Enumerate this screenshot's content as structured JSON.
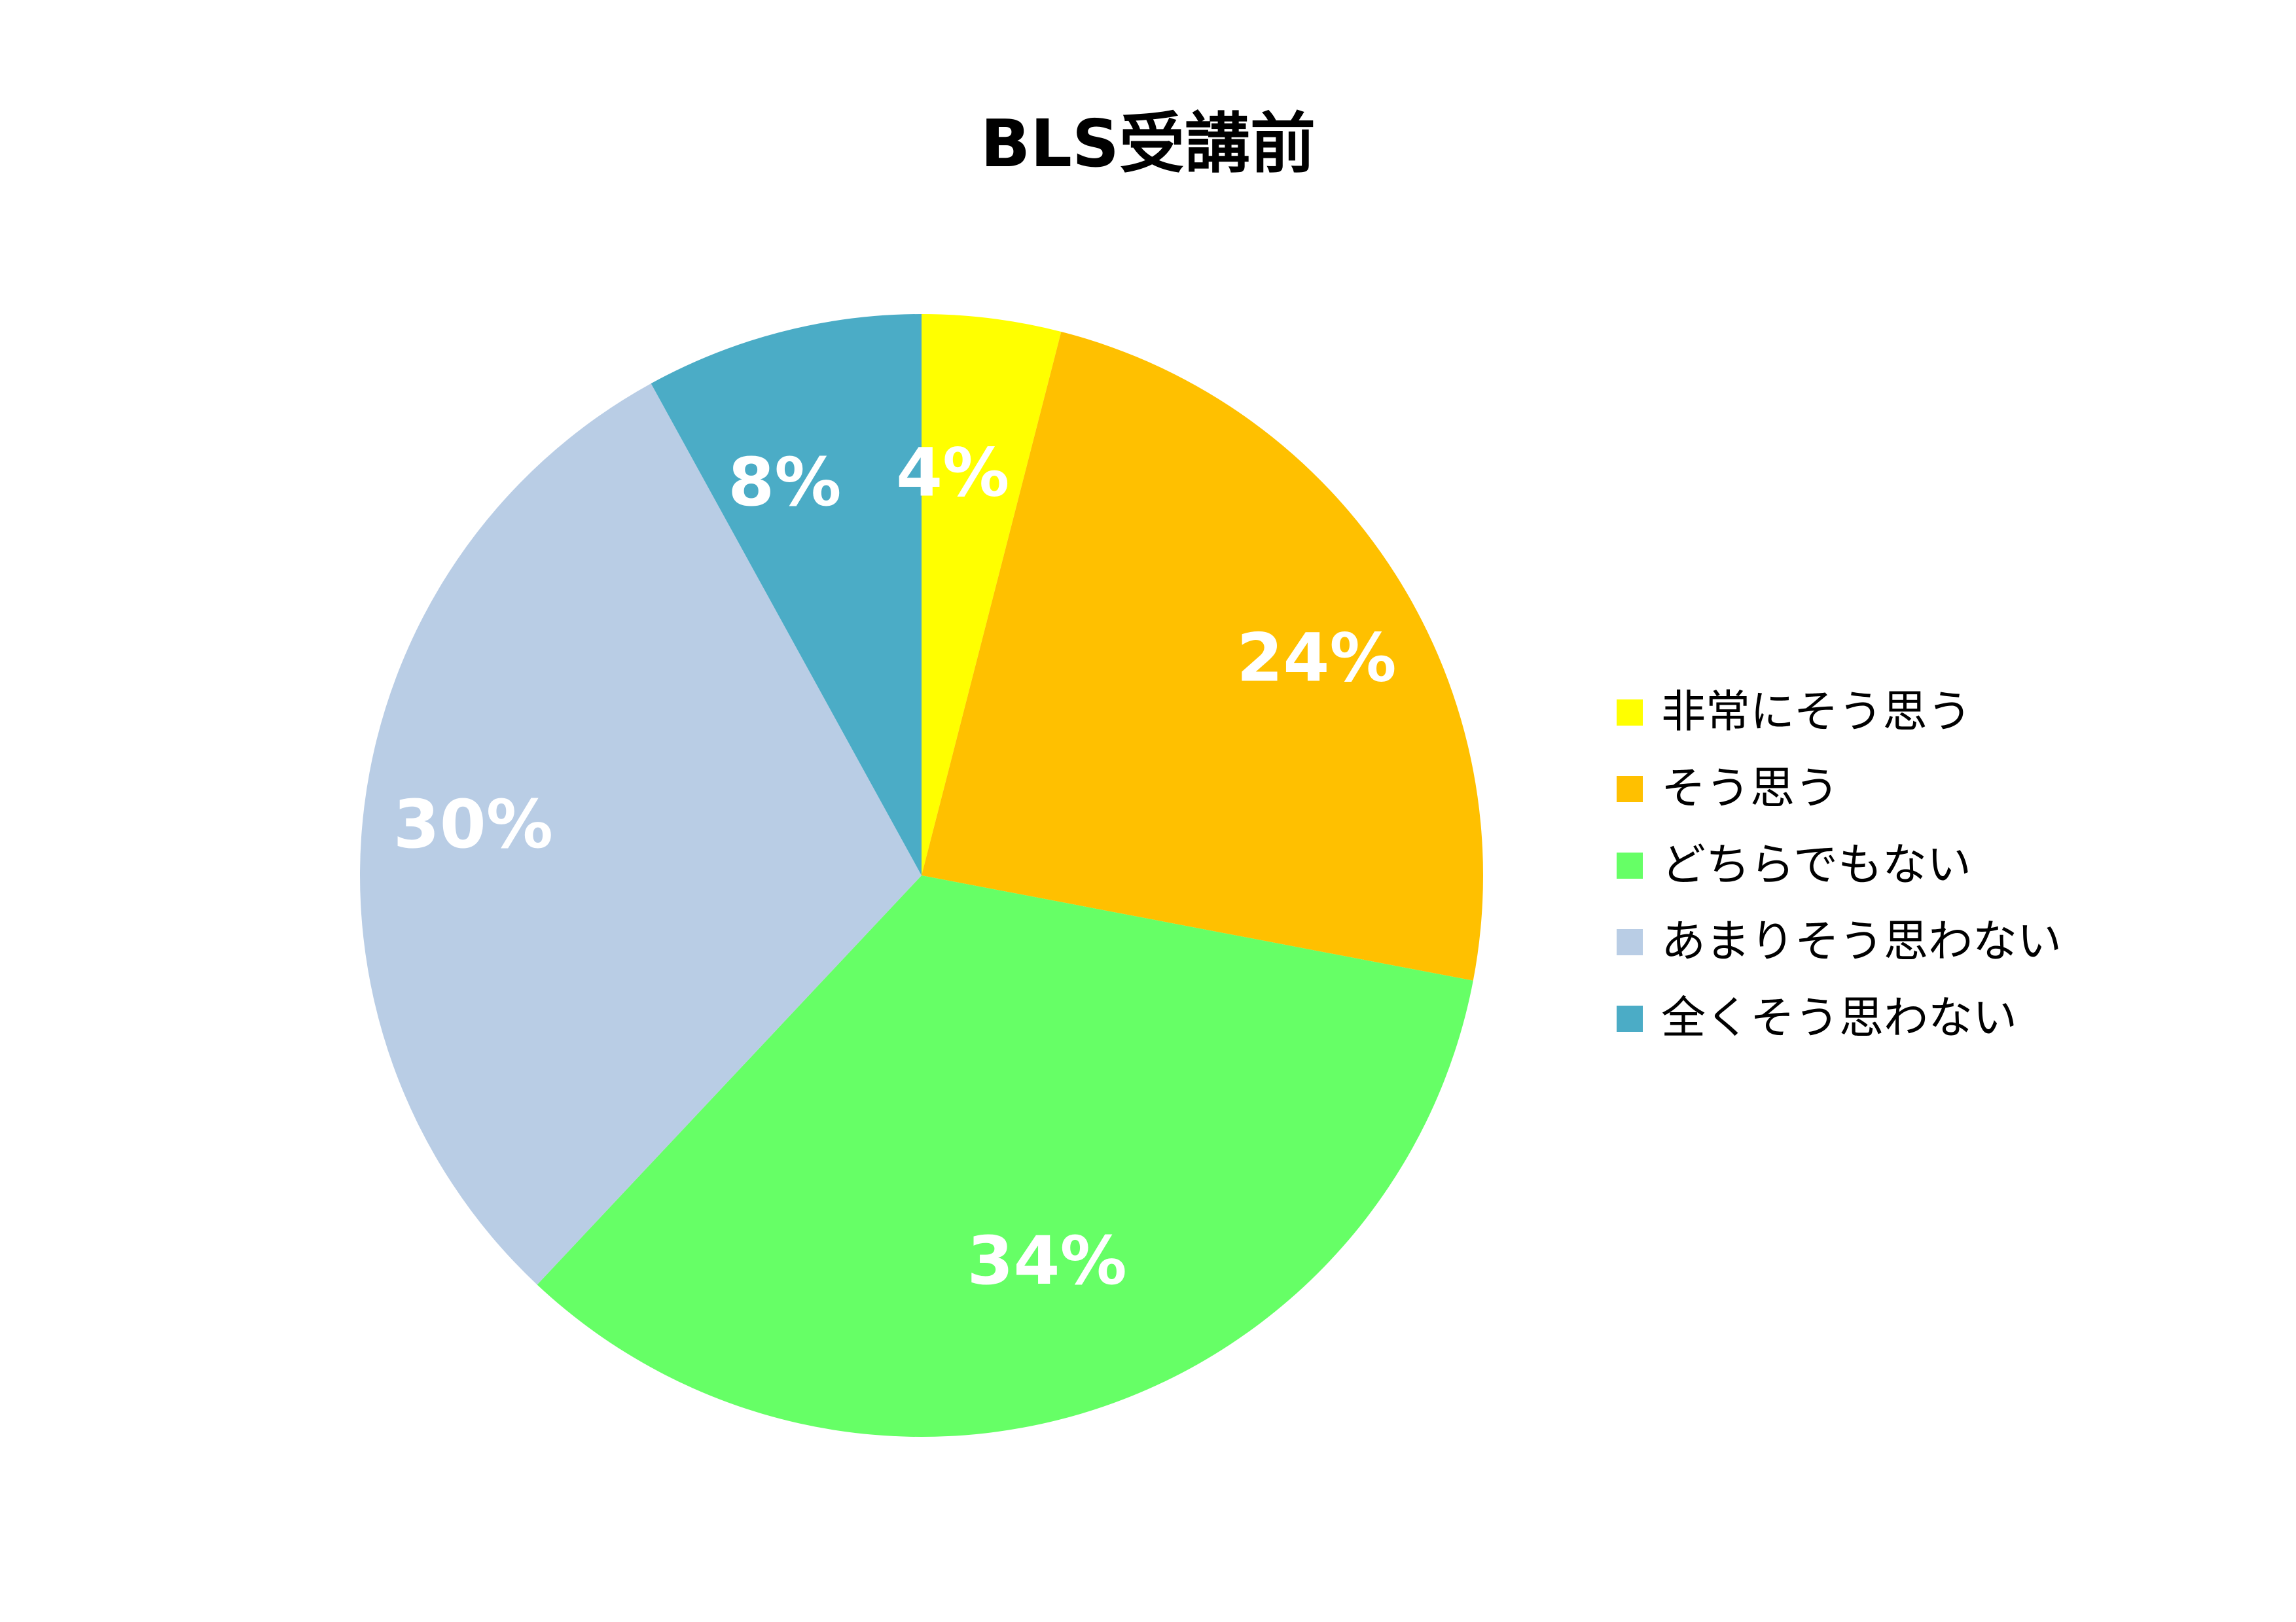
{
  "chart_data": {
    "type": "pie",
    "title": "BLS受講前",
    "legend_position": "right",
    "categories": [
      "非常にそう思う",
      "そう思う",
      "どちらでもない",
      "あまりそう思わない",
      "全くそう思わない"
    ],
    "values": [
      4,
      24,
      34,
      30,
      8
    ],
    "labels": [
      "4%",
      "24%",
      "34%",
      "30%",
      "8%"
    ],
    "colors": [
      "#FFFF00",
      "#FFC000",
      "#66FF66",
      "#B9CDE5",
      "#4BACC6"
    ]
  }
}
